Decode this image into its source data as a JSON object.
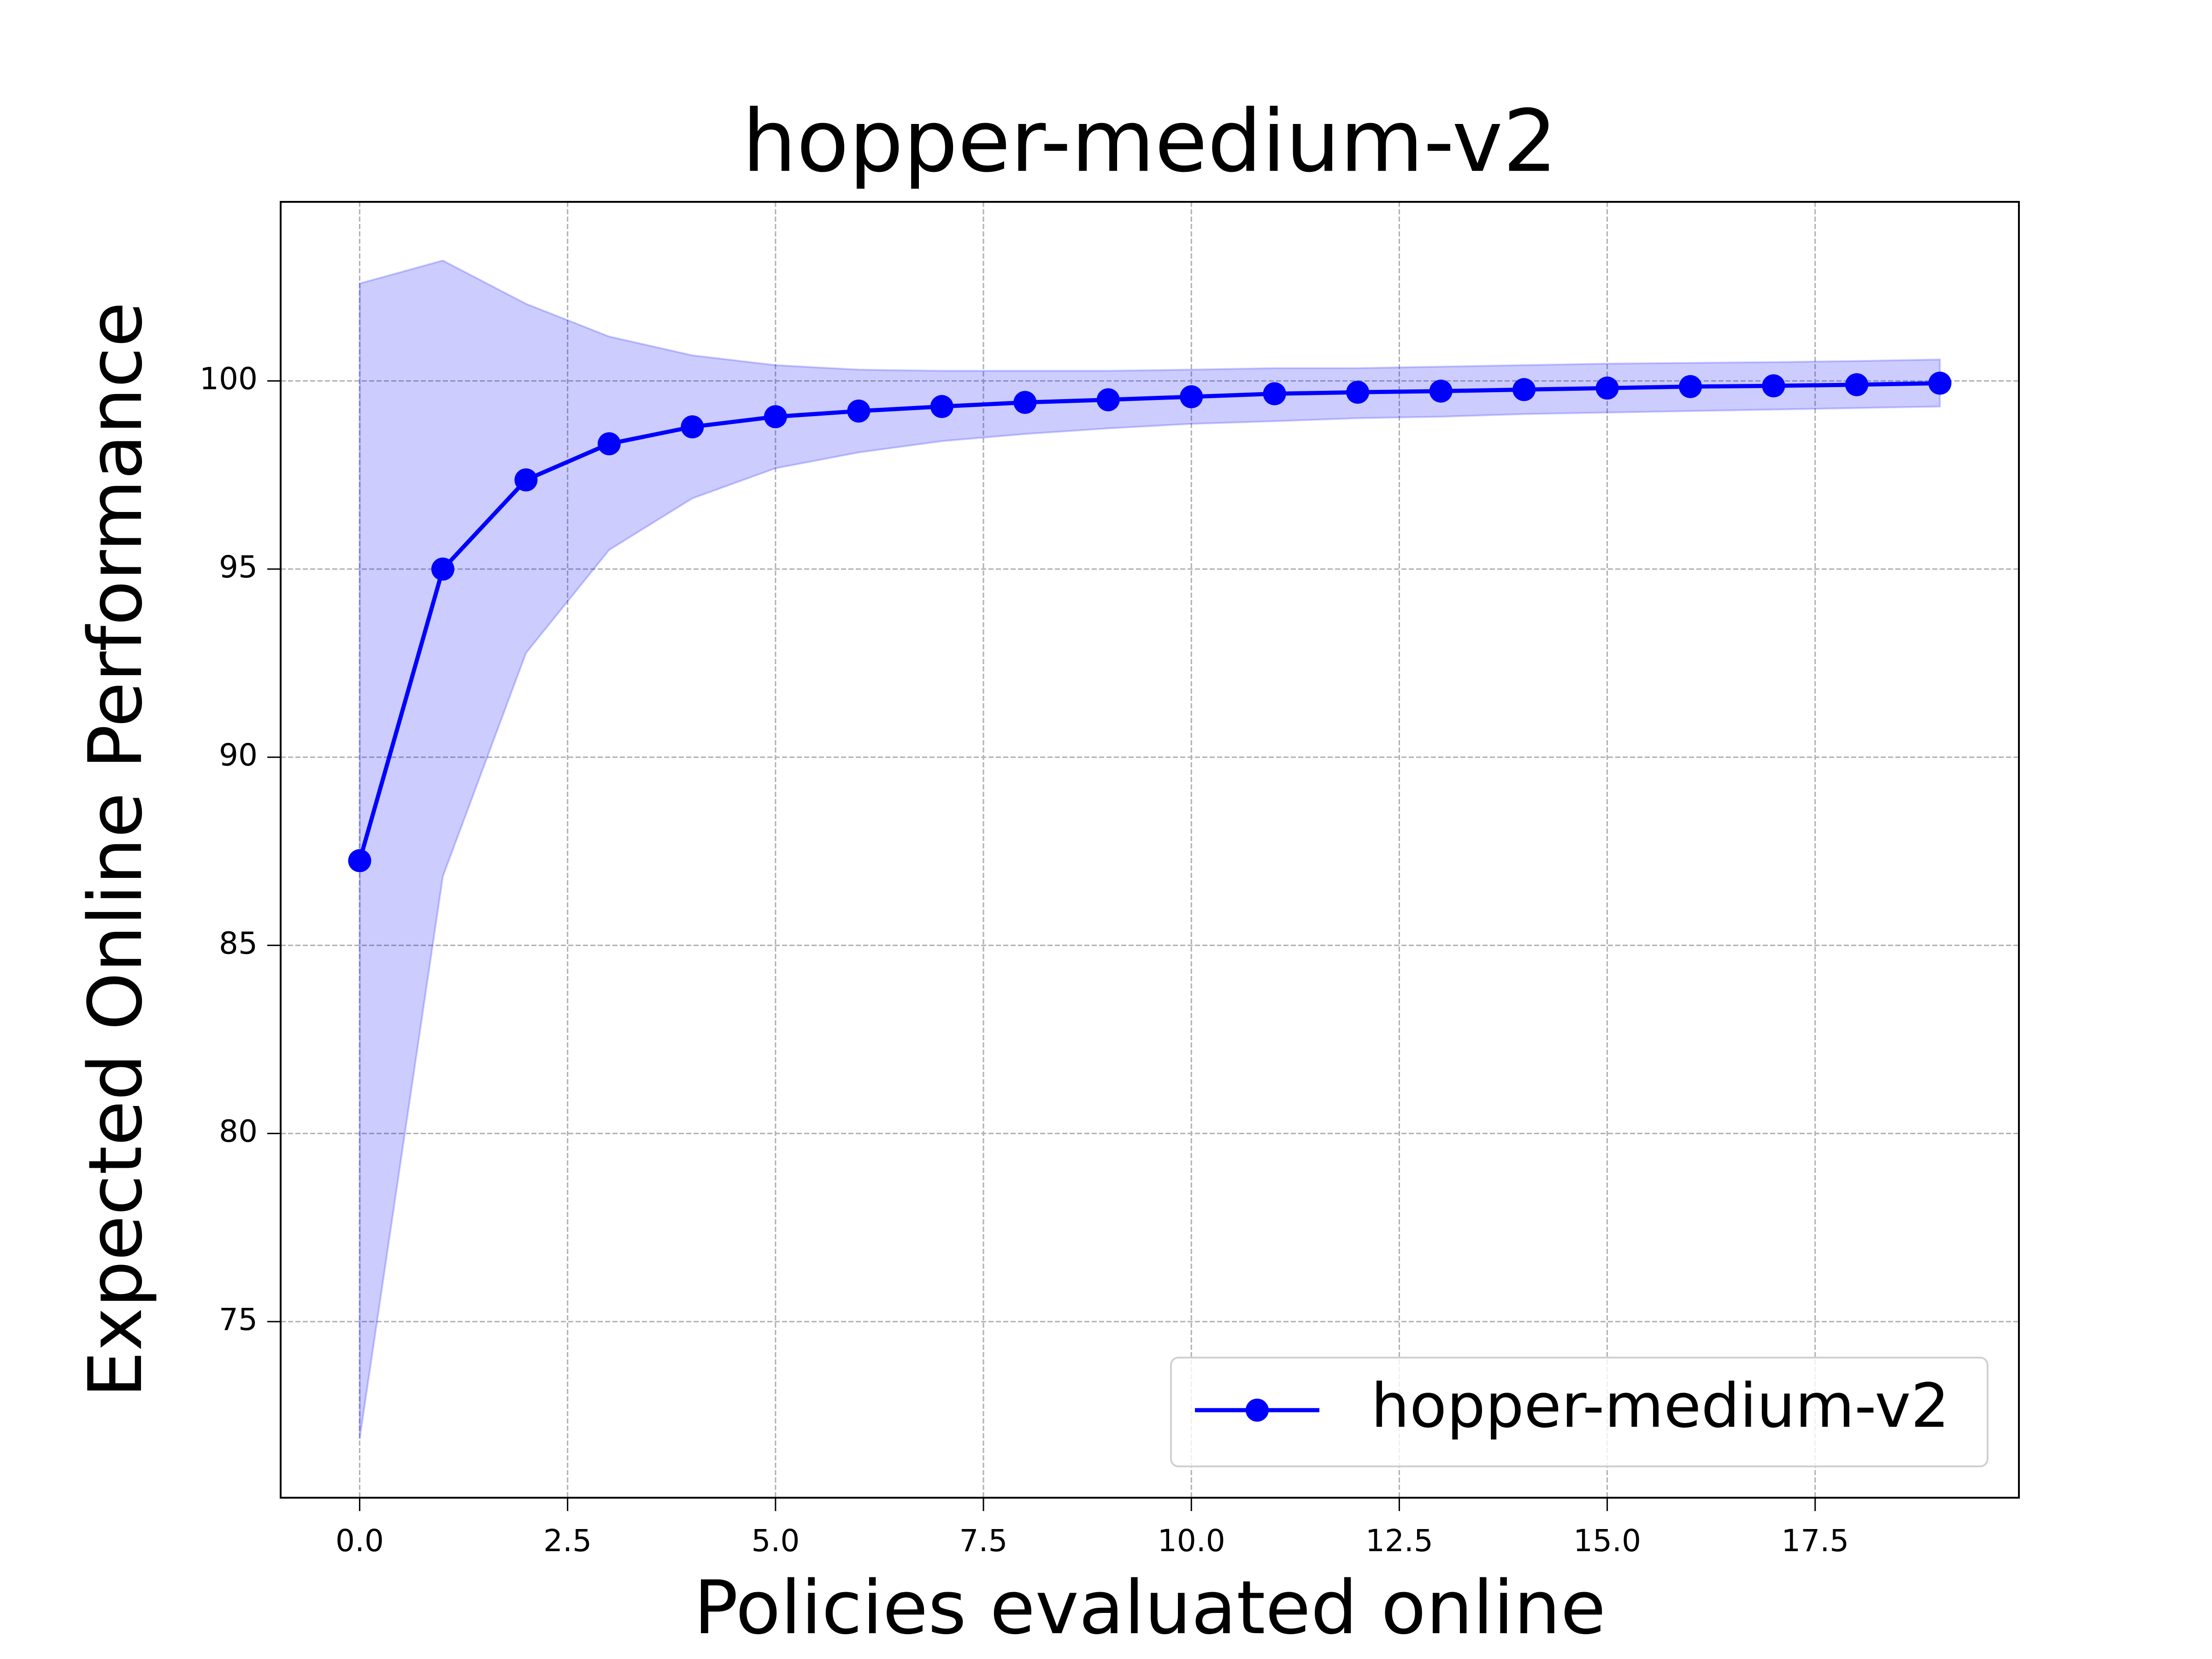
{
  "chart_data": {
    "type": "line",
    "title": "hopper-medium-v2",
    "xlabel": "Policies evaluated online",
    "ylabel": "Expected Online Performance",
    "x": [
      0,
      1,
      2,
      3,
      4,
      5,
      6,
      7,
      8,
      9,
      10,
      11,
      12,
      13,
      14,
      15,
      16,
      17,
      18,
      19
    ],
    "series": [
      {
        "name": "hopper-medium-v2",
        "color": "#0000ff",
        "band_color": "#0000ff",
        "values": [
          87.25,
          95.0,
          97.37,
          98.33,
          98.78,
          99.05,
          99.2,
          99.32,
          99.43,
          99.5,
          99.58,
          99.66,
          99.7,
          99.73,
          99.77,
          99.81,
          99.85,
          99.87,
          99.9,
          99.94
        ],
        "upper": [
          102.59,
          103.2,
          102.05,
          101.18,
          100.68,
          100.42,
          100.3,
          100.27,
          100.27,
          100.27,
          100.3,
          100.34,
          100.34,
          100.38,
          100.42,
          100.46,
          100.48,
          100.5,
          100.53,
          100.57
        ],
        "lower": [
          71.88,
          86.83,
          92.77,
          95.51,
          96.88,
          97.68,
          98.1,
          98.4,
          98.59,
          98.74,
          98.86,
          98.93,
          99.01,
          99.05,
          99.12,
          99.16,
          99.2,
          99.24,
          99.28,
          99.32
        ]
      }
    ],
    "xlim": [
      -0.95,
      19.95
    ],
    "ylim": [
      70.32,
      104.76
    ],
    "xticks": [
      {
        "value": 0,
        "label": "0.0"
      },
      2.5,
      {
        "value": 5,
        "label": "5.0"
      },
      7.5,
      {
        "value": 10,
        "label": "10.0"
      },
      12.5,
      {
        "value": 15,
        "label": "15.0"
      },
      17.5
    ],
    "yticks": [
      75,
      80,
      85,
      90,
      95,
      100
    ],
    "grid": true,
    "legend": "lower right"
  }
}
